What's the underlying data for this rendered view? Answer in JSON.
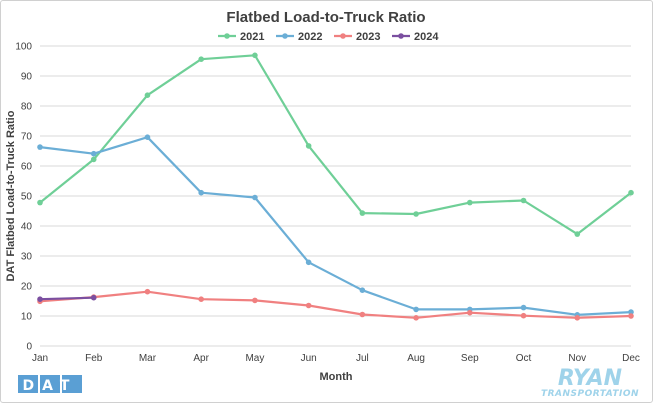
{
  "chart_data": {
    "type": "line",
    "title": "Flatbed Load-to-Truck Ratio",
    "xlabel": "Month",
    "ylabel": "DAT Flatbed Load-to-Truck Ratio",
    "categories": [
      "Jan",
      "Feb",
      "Mar",
      "Apr",
      "May",
      "Jun",
      "Jul",
      "Aug",
      "Sep",
      "Oct",
      "Nov",
      "Dec"
    ],
    "ylim": [
      0,
      100
    ],
    "yticks": [
      0,
      10,
      20,
      30,
      40,
      50,
      60,
      70,
      80,
      90,
      100
    ],
    "grid": true,
    "legend_position": "top-center",
    "series": [
      {
        "name": "2021",
        "color": "#6fcf97",
        "values": [
          47.8,
          62.2,
          83.6,
          95.6,
          96.9,
          66.7,
          44.3,
          44.0,
          47.8,
          48.5,
          37.3,
          51.1
        ]
      },
      {
        "name": "2022",
        "color": "#6baed6",
        "values": [
          66.3,
          64.1,
          69.6,
          51.1,
          49.5,
          27.9,
          18.6,
          12.2,
          12.2,
          12.8,
          10.4,
          11.3
        ]
      },
      {
        "name": "2023",
        "color": "#f08080",
        "values": [
          14.9,
          16.3,
          18.1,
          15.6,
          15.2,
          13.5,
          10.5,
          9.4,
          11.1,
          10.1,
          9.4,
          10.0
        ]
      },
      {
        "name": "2024",
        "color": "#7b4fa0",
        "values": [
          15.6,
          16.1,
          null,
          null,
          null,
          null,
          null,
          null,
          null,
          null,
          null,
          null
        ]
      }
    ]
  },
  "logos": {
    "dat": "DAT",
    "ryan": "RYAN",
    "ryan_sub": "TRANSPORTATION"
  }
}
